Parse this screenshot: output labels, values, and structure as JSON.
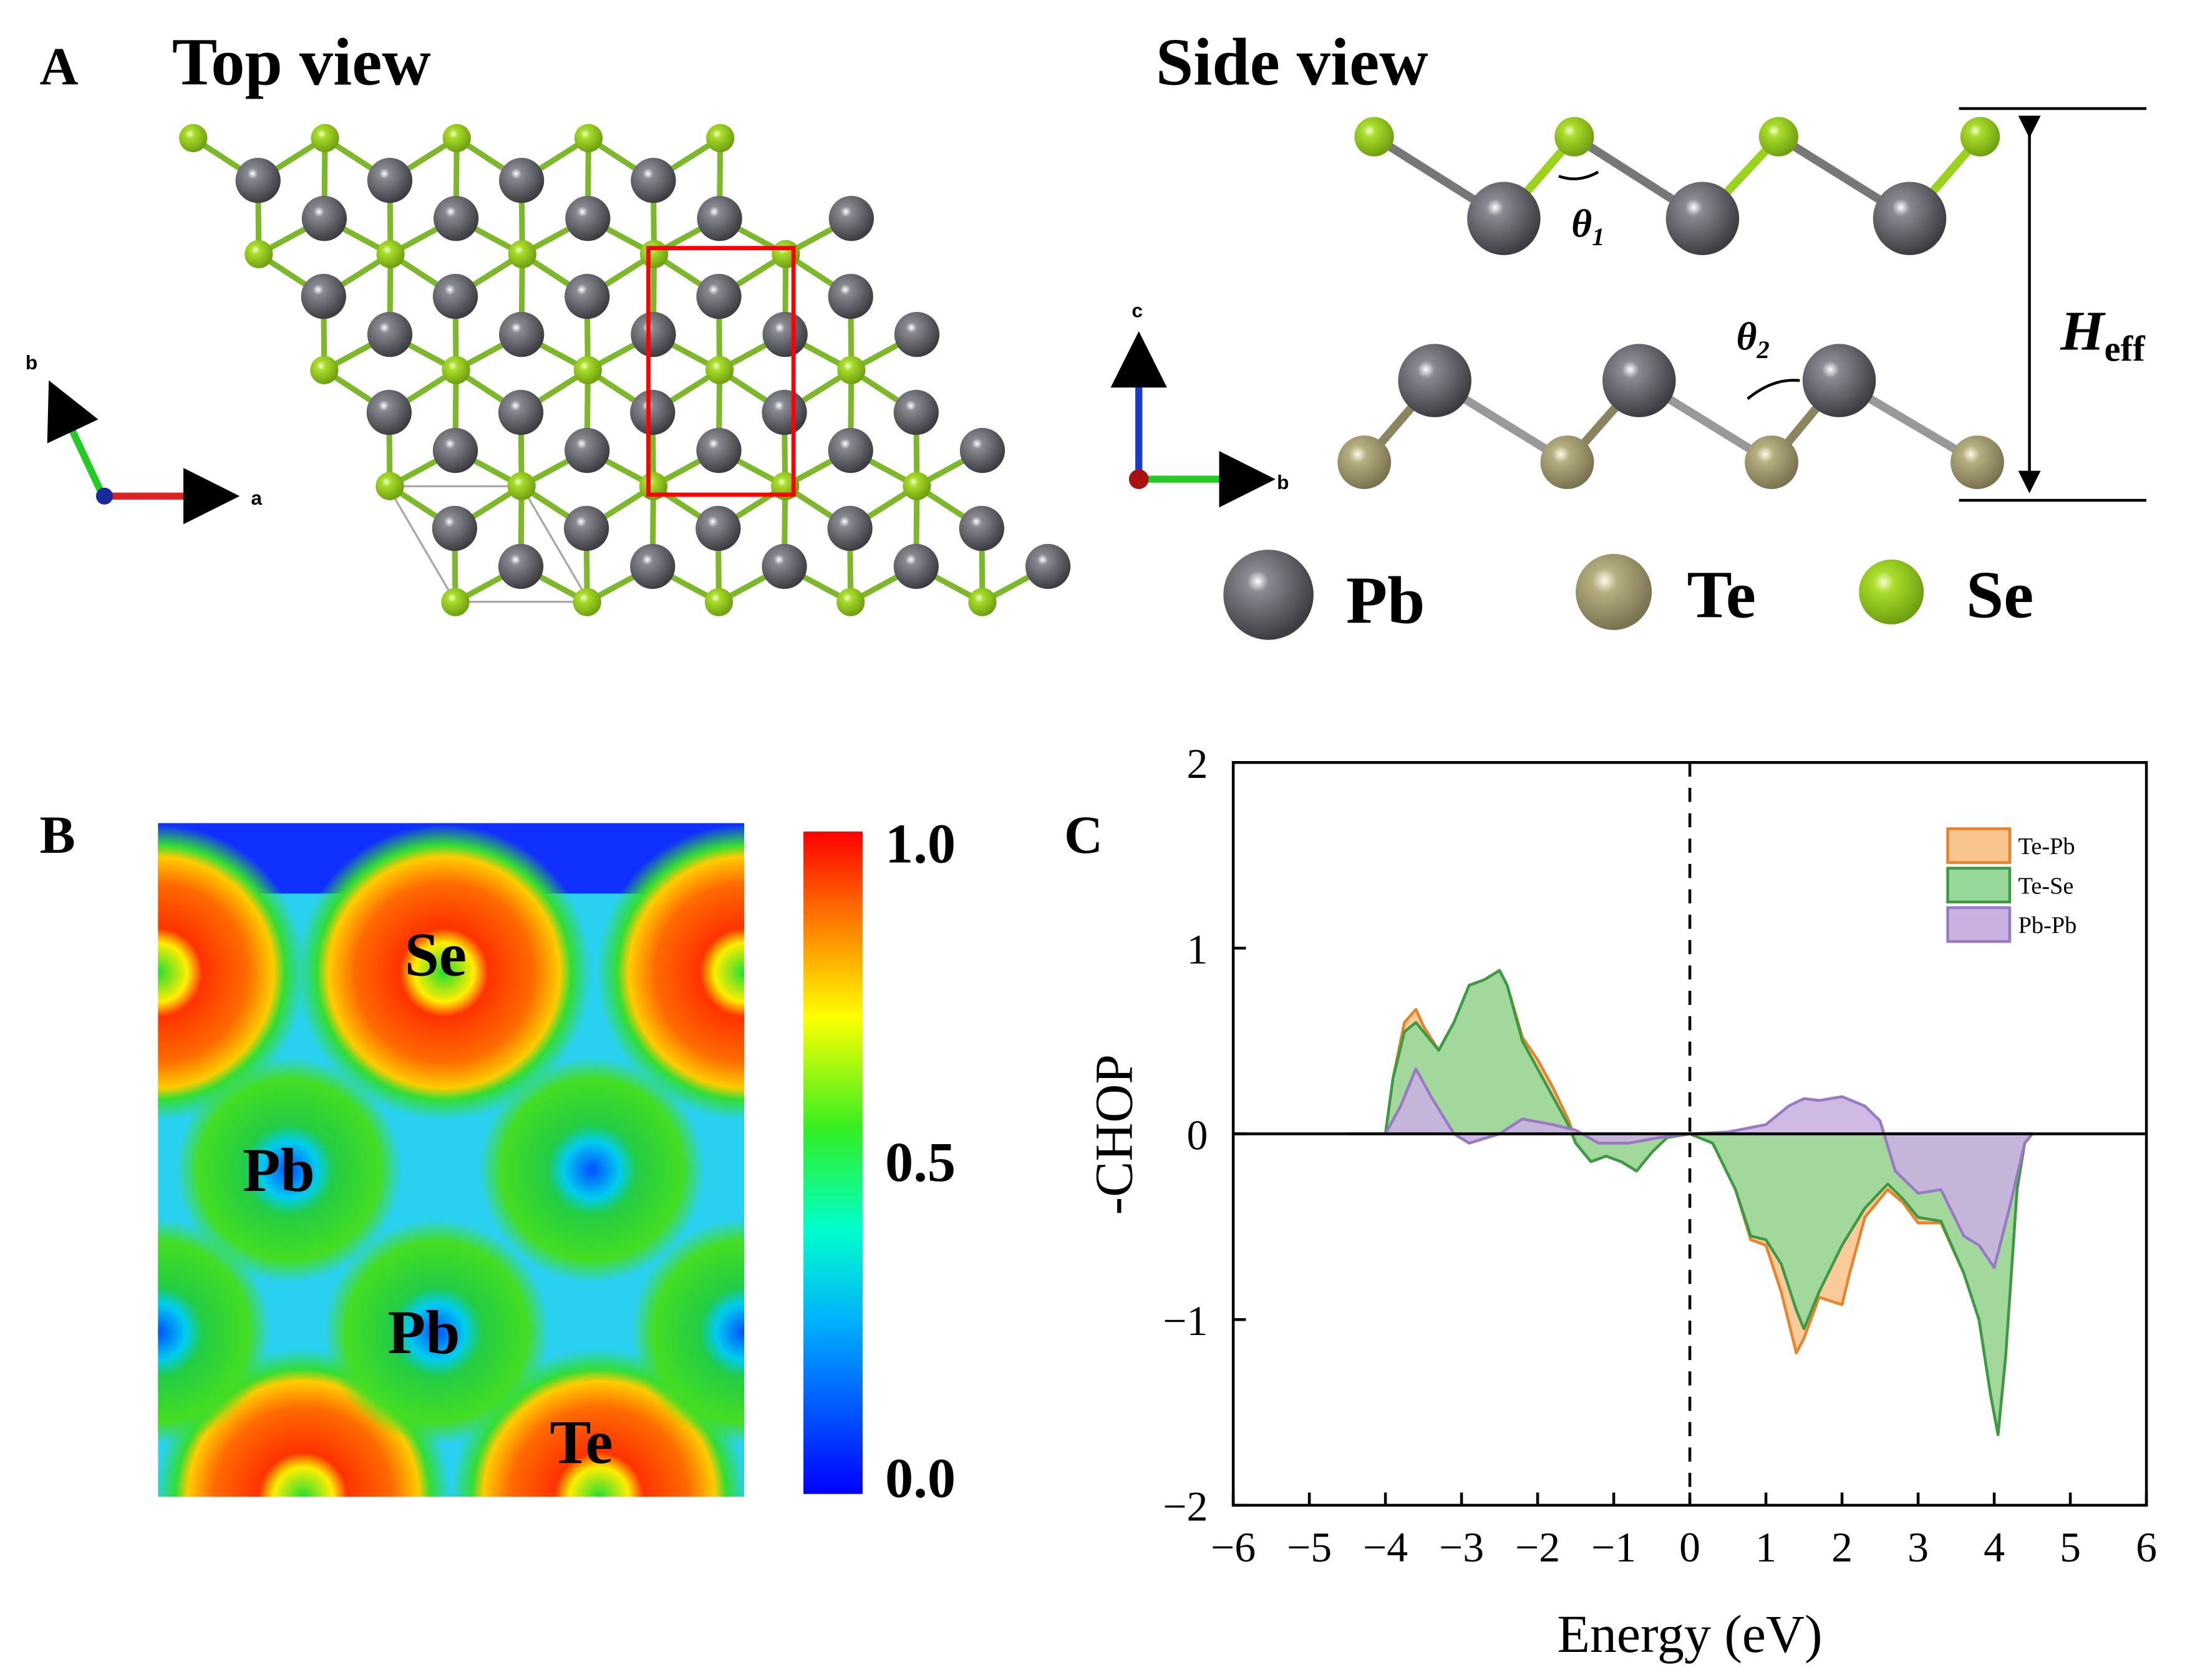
{
  "panel_a": {
    "label": "A",
    "top_view_title": "Top view",
    "side_view_title": "Side view",
    "top_axes": {
      "b": "b",
      "a": "a"
    },
    "side_axes": {
      "c": "c",
      "b": "b"
    },
    "theta1": "θ",
    "theta1_sub": "1",
    "theta2": "θ",
    "theta2_sub": "2",
    "height_label": "H",
    "height_sub": "eff",
    "legend": [
      {
        "element": "Pb",
        "color": "#4a4a50"
      },
      {
        "element": "Te",
        "color": "#9b9567"
      },
      {
        "element": "Se",
        "color": "#9ad21e"
      }
    ],
    "unit_cell_box_color": "#ff0000"
  },
  "panel_b": {
    "label": "B",
    "atom_labels": [
      "Se",
      "Pb",
      "Pb",
      "Te"
    ],
    "colorbar": {
      "max_label": "1.0",
      "mid_label": "0.5",
      "min_label": "0.0",
      "range": [
        0,
        1
      ],
      "colormap": "jet"
    }
  },
  "chart_data": {
    "label": "C",
    "type": "area",
    "xlabel": "Energy (eV)",
    "ylabel": "-CHOP",
    "xlim": [
      -6,
      6
    ],
    "ylim": [
      -2,
      2
    ],
    "xticks": [
      "−6",
      "−5",
      "−4",
      "−3",
      "−2",
      "−1",
      "0",
      "1",
      "2",
      "3",
      "4",
      "5",
      "6"
    ],
    "yticks": [
      "2",
      "1",
      "0",
      "−1",
      "−2"
    ],
    "grid": false,
    "legend_position": "top-right",
    "fermi_level_line": 0,
    "series": [
      {
        "name": "Te-Pb",
        "fill": "#f9c58f",
        "stroke": "#e8832a",
        "x": [
          -4.5,
          -4,
          -3.9,
          -3.75,
          -3.6,
          -3.5,
          -3.3,
          -3.1,
          -2.9,
          -2.7,
          -2.5,
          -2.4,
          -2.2,
          -2.0,
          -1.8,
          -1.6,
          -1.5,
          -1.3,
          -1.1,
          -0.9,
          -0.7,
          -0.5,
          -0.3,
          0,
          0.3,
          0.6,
          0.8,
          1.0,
          1.2,
          1.4,
          1.5,
          1.7,
          2.0,
          2.1,
          2.3,
          2.6,
          2.8,
          3.0,
          3.3,
          3.6,
          3.8,
          3.95,
          4.05,
          4.15,
          4.3,
          4.4,
          4.5
        ],
        "y": [
          0,
          0,
          0.3,
          0.6,
          0.67,
          0.58,
          0.45,
          0.6,
          0.8,
          0.83,
          0.88,
          0.8,
          0.52,
          0.4,
          0.25,
          0.08,
          -0.03,
          -0.14,
          -0.12,
          -0.15,
          -0.2,
          -0.1,
          -0.02,
          0,
          -0.05,
          -0.3,
          -0.57,
          -0.6,
          -0.85,
          -1.18,
          -1.1,
          -0.88,
          -0.92,
          -0.75,
          -0.45,
          -0.3,
          -0.37,
          -0.48,
          -0.48,
          -0.75,
          -1.0,
          -1.4,
          -1.62,
          -1.2,
          -0.3,
          -0.05,
          0
        ]
      },
      {
        "name": "Te-Se",
        "fill": "#98d99b",
        "stroke": "#3d9a44",
        "x": [
          -4.5,
          -4,
          -3.9,
          -3.75,
          -3.6,
          -3.5,
          -3.3,
          -3.1,
          -2.9,
          -2.7,
          -2.5,
          -2.4,
          -2.2,
          -2.0,
          -1.8,
          -1.6,
          -1.5,
          -1.3,
          -1.1,
          -0.9,
          -0.7,
          -0.5,
          -0.3,
          0,
          0.3,
          0.6,
          0.8,
          1.0,
          1.2,
          1.4,
          1.5,
          1.7,
          2.0,
          2.3,
          2.6,
          2.8,
          3.0,
          3.3,
          3.6,
          3.8,
          3.95,
          4.05,
          4.15,
          4.3,
          4.4,
          4.5
        ],
        "y": [
          0,
          0,
          0.3,
          0.55,
          0.6,
          0.55,
          0.45,
          0.6,
          0.8,
          0.83,
          0.88,
          0.8,
          0.5,
          0.35,
          0.2,
          0.05,
          -0.05,
          -0.15,
          -0.12,
          -0.15,
          -0.2,
          -0.1,
          -0.02,
          0,
          -0.05,
          -0.3,
          -0.55,
          -0.57,
          -0.7,
          -0.95,
          -1.05,
          -0.85,
          -0.6,
          -0.4,
          -0.27,
          -0.35,
          -0.45,
          -0.47,
          -0.75,
          -1.0,
          -1.4,
          -1.62,
          -1.2,
          -0.3,
          -0.05,
          0
        ]
      },
      {
        "name": "Pb-Pb",
        "fill": "#c9b2e0",
        "stroke": "#9a79c4",
        "x": [
          -4.5,
          -4,
          -3.8,
          -3.6,
          -3.4,
          -3.1,
          -2.9,
          -2.5,
          -2.2,
          -1.8,
          -1.5,
          -1.2,
          -0.8,
          -0.4,
          0,
          0.5,
          1.0,
          1.3,
          1.5,
          1.7,
          2.0,
          2.3,
          2.5,
          2.7,
          3.0,
          3.3,
          3.6,
          3.8,
          4.0,
          4.2,
          4.4,
          4.5
        ],
        "y": [
          0,
          0,
          0.15,
          0.35,
          0.2,
          0,
          -0.05,
          0,
          0.08,
          0.05,
          0.02,
          -0.05,
          -0.05,
          -0.02,
          0,
          0.01,
          0.05,
          0.15,
          0.19,
          0.18,
          0.2,
          0.15,
          0.07,
          -0.2,
          -0.32,
          -0.3,
          -0.55,
          -0.6,
          -0.72,
          -0.4,
          -0.05,
          0
        ]
      }
    ]
  }
}
